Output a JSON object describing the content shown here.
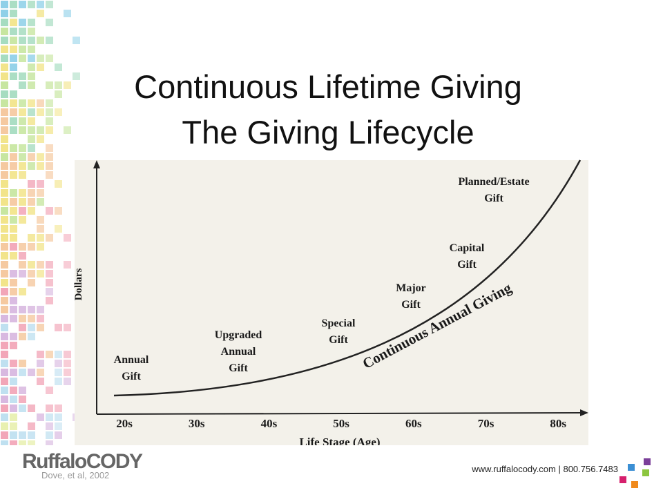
{
  "header": {
    "title_lines": [
      "Continuous Lifetime Giving",
      "The Giving Lifecycle"
    ]
  },
  "diagram": {
    "y_axis_label": "Dollars",
    "x_axis_label": "Life Stage (Age)",
    "x_labels": [
      "20s",
      "30s",
      "40s",
      "50s",
      "60s",
      "70s",
      "80s"
    ],
    "curve_label": "Continuous Annual Giving",
    "annotations": [
      {
        "lines": [
          "Annual",
          "Gift"
        ]
      },
      {
        "lines": [
          "Upgraded",
          "Annual",
          "Gift"
        ]
      },
      {
        "lines": [
          "Special",
          "Gift"
        ]
      },
      {
        "lines": [
          "Major",
          "Gift"
        ]
      },
      {
        "lines": [
          "Capital",
          "Gift"
        ]
      },
      {
        "lines": [
          "Planned/Estate",
          "Gift"
        ]
      }
    ]
  },
  "footer": {
    "logo": "RuffaloCODY",
    "citation": "Dove, et al, 2002",
    "contact": "www.ruffalocody.com | 800.756.7483"
  }
}
